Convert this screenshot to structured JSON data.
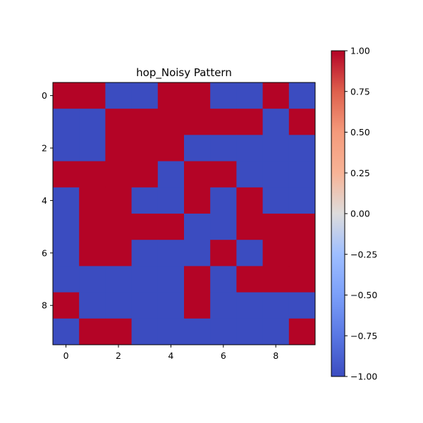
{
  "chart_data": {
    "type": "heatmap",
    "title": "hop_Noisy Pattern",
    "xlabel": "",
    "ylabel": "",
    "colormap": "coolwarm",
    "vmin": -1.0,
    "vmax": 1.0,
    "colors": {
      "low": "#3b4cc0",
      "high": "#b40426"
    },
    "x_ticks": [
      0,
      2,
      4,
      6,
      8
    ],
    "y_ticks": [
      0,
      2,
      4,
      6,
      8
    ],
    "colorbar_ticks": [
      "1.00",
      "0.75",
      "0.50",
      "0.25",
      "0.00",
      "−0.25",
      "−0.50",
      "−0.75",
      "−1.00"
    ],
    "colorbar_tick_values": [
      1.0,
      0.75,
      0.5,
      0.25,
      0.0,
      -0.25,
      -0.5,
      -0.75,
      -1.0
    ],
    "matrix": [
      [
        1,
        1,
        -1,
        -1,
        1,
        1,
        -1,
        -1,
        1,
        -1
      ],
      [
        -1,
        -1,
        1,
        1,
        1,
        1,
        1,
        1,
        -1,
        1
      ],
      [
        -1,
        -1,
        1,
        1,
        1,
        -1,
        -1,
        -1,
        -1,
        -1
      ],
      [
        1,
        1,
        1,
        1,
        -1,
        1,
        1,
        -1,
        -1,
        -1
      ],
      [
        -1,
        1,
        1,
        -1,
        -1,
        1,
        -1,
        1,
        -1,
        -1
      ],
      [
        -1,
        1,
        1,
        1,
        1,
        -1,
        -1,
        1,
        1,
        1
      ],
      [
        -1,
        1,
        1,
        -1,
        -1,
        -1,
        1,
        -1,
        1,
        1
      ],
      [
        -1,
        -1,
        -1,
        -1,
        -1,
        1,
        -1,
        1,
        1,
        1
      ],
      [
        1,
        -1,
        -1,
        -1,
        -1,
        1,
        -1,
        -1,
        -1,
        -1
      ],
      [
        -1,
        1,
        1,
        -1,
        -1,
        -1,
        -1,
        -1,
        -1,
        1
      ]
    ],
    "grid": false
  }
}
